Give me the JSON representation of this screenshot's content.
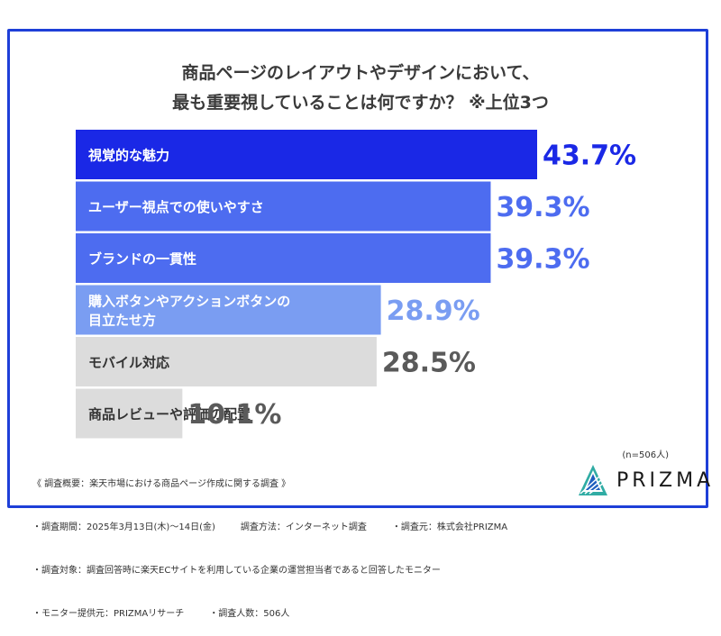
{
  "title_lines": [
    "商品ページのレイアウトやデザインにおいて、",
    "最も重要視していることは何ですか？ ※上位3つ"
  ],
  "chart_data": {
    "type": "bar",
    "orientation": "horizontal",
    "categories": [
      [
        "視覚的な魅力"
      ],
      [
        "ユーザー視点での使いやすさ"
      ],
      [
        "ブランドの一貫性"
      ],
      [
        "購入ボタンやアクションボタンの",
        "目立たせ方"
      ],
      [
        "モバイル対応"
      ],
      [
        "商品レビューや評価の配置"
      ]
    ],
    "values": [
      43.7,
      39.3,
      39.3,
      28.9,
      28.5,
      10.1
    ],
    "value_labels": [
      "43.7%",
      "39.3%",
      "39.3%",
      "28.9%",
      "28.5%",
      "10.1%"
    ],
    "bar_colors": [
      "#1a28e6",
      "#4d6cf0",
      "#4d6cf0",
      "#7a9df2",
      "#dcdcdc",
      "#dcdcdc"
    ],
    "label_colors": [
      "#1a28e6",
      "#4d6cf0",
      "#4d6cf0",
      "#7a9df2",
      "#5a5a5a",
      "#5a5a5a"
    ],
    "category_text_colors": [
      "#ffffff",
      "#ffffff",
      "#ffffff",
      "#ffffff",
      "#333333",
      "#333333"
    ],
    "xlim": [
      0,
      43.7
    ]
  },
  "footer": {
    "overview": "《 調査概要：楽天市場における商品ページ作成に関する調査 》",
    "period": "・調査期間：2025年3月13日(木)〜14日(金)",
    "method": "調査方法：インターネット調査",
    "source": "・調査元：株式会社PRIZMA",
    "target": "・調査対象：調査回答時に楽天ECサイトを利用している企業の運営担当者であると回答したモニター",
    "provider": "・モニター提供元：PRIZMAリサーチ",
    "count": "・調査人数：506人"
  },
  "n_label": "(n=506人)",
  "logo_text": "PRIZMA",
  "brand_color": "#1e3fd8"
}
